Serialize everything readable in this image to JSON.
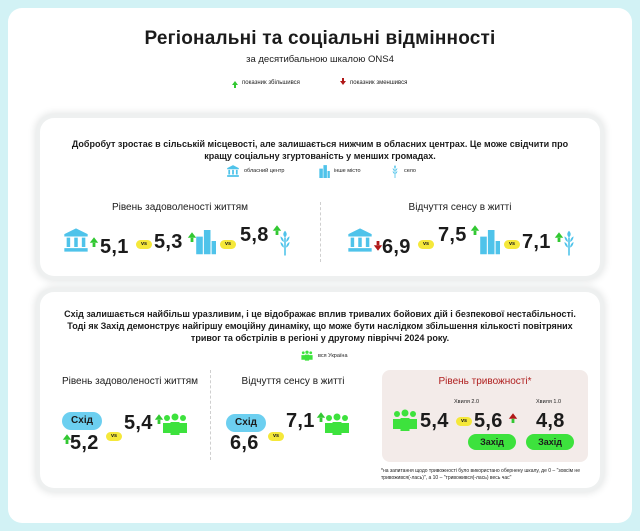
{
  "header": {
    "title": "Регіональні та соціальні відмінності",
    "subtitle": "за десятибальною шкалою ONS4",
    "legend_up": "показник збільшився",
    "legend_down": "показник зменшився"
  },
  "colors": {
    "background": "#d2f2f5",
    "up": "#32c832",
    "down": "#b01818",
    "vs": "#f5e83a",
    "east": "#6ccff0",
    "west": "#3de23d",
    "anxiety_title": "#b02020"
  },
  "section1": {
    "text": "Добробут зростає в сільській місцевості, але залишається нижчим в обласних центрах. Це може свідчити про кращу соціальну згуртованість у менших громадах.",
    "legend": {
      "oblast_center": "обласний центр",
      "other_city": "інше місто",
      "village": "село"
    },
    "life_satisfaction": {
      "label": "Рівень задоволеності життям",
      "oblast_center": "5,1",
      "other_city": "5,3",
      "village": "5,8",
      "vs": "vs"
    },
    "meaning": {
      "label": "Відчуття сенсу в житті",
      "oblast_center": "6,9",
      "other_city": "7,5",
      "village": "7,1",
      "vs": "vs"
    }
  },
  "section2": {
    "text": "Схід залишається найбільш уразливим, і це відображає вплив тривалих бойових дій і безпекової нестабільності. Тоді як Захід демонструє найгіршу емоційну динаміку, що може бути наслідком збільшення кількості повітряних тривог та обстрілів в регіоні у другому півріччі 2024 року.",
    "legend_all_ukraine": "вся Україна",
    "life_satisfaction": {
      "label": "Рівень задоволеності життям",
      "region": "Схід",
      "region_value": "5,2",
      "all_ukraine": "5,4",
      "vs": "vs"
    },
    "meaning": {
      "label": "Відчуття сенсу в житті",
      "region": "Схід",
      "region_value": "6,6",
      "all_ukraine": "7,1",
      "vs": "vs"
    },
    "anxiety": {
      "label": "Рівень тривожності*",
      "wave_a": "Хвиля 2.0",
      "wave_b": "Хвиля 1.0",
      "all_ukraine": "5,4",
      "west_a": "5,6",
      "west_b": "4,8",
      "west_label": "Захід",
      "vs": "vs",
      "footnote": "*на запитання щодо тривожності було використано обернену шкалу, де 0 – \"зовсім не тривожився(-лась)\", а 10 – \"тривожився(-лась) весь час\""
    }
  }
}
